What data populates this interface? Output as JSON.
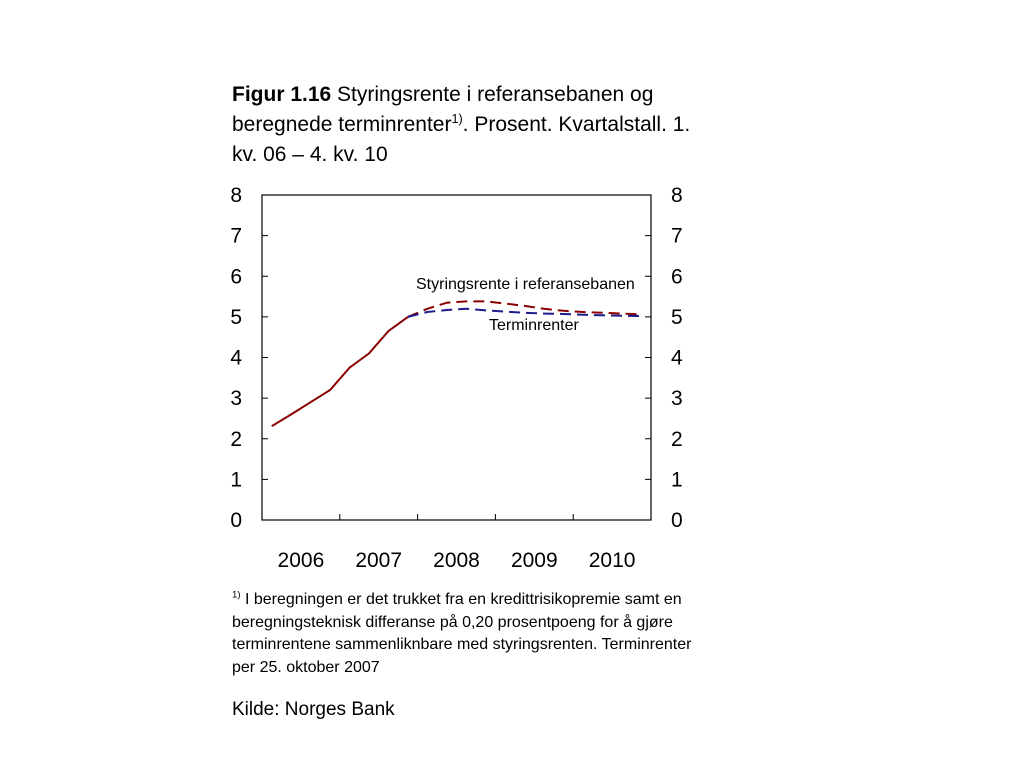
{
  "figure": {
    "label": "Figur 1.16",
    "title_part1": "Styringsrente i referansebanen og beregnede terminrenter",
    "title_sup": "1)",
    "title_part2": ". Prosent. Kvartalstall. 1. kv. 06 – 4. kv. 10"
  },
  "footnote": {
    "marker": "1)",
    "text": " I beregningen er det trukket fra en kredittrisikopremie samt en beregningsteknisk differanse på 0,20 prosentpoeng for å gjøre terminrentene sammenliknbare med styringsrenten. Terminrenter per 25. oktober 2007"
  },
  "source": "Kilde: Norges Bank",
  "chart_data": {
    "type": "line",
    "x_tick_labels": [
      "2006",
      "2007",
      "2008",
      "2009",
      "2010"
    ],
    "y_tick_labels": [
      "0",
      "1",
      "2",
      "3",
      "4",
      "5",
      "6",
      "7",
      "8"
    ],
    "ylim": [
      0,
      8
    ],
    "xlim": [
      "1. kv. 06",
      "4. kv. 10"
    ],
    "x_quarters": [
      "1. kv. 06",
      "2. kv. 06",
      "3. kv. 06",
      "4. kv. 06",
      "1. kv. 07",
      "2. kv. 07",
      "3. kv. 07",
      "4. kv. 07",
      "1. kv. 08",
      "2. kv. 08",
      "3. kv. 08",
      "4. kv. 08",
      "1. kv. 09",
      "2. kv. 09",
      "3. kv. 09",
      "4. kv. 09",
      "1. kv. 10",
      "2. kv. 10",
      "3. kv. 10",
      "4. kv. 10"
    ],
    "grid": false,
    "series": [
      {
        "name": "Styringsrente i referansebanen",
        "color": "#8b0000",
        "values": [
          2.31,
          2.6,
          2.9,
          3.2,
          3.75,
          4.1,
          4.65,
          5.0,
          5.2,
          5.35,
          5.38,
          5.38,
          5.33,
          5.27,
          5.2,
          5.15,
          5.12,
          5.1,
          5.08,
          5.06
        ],
        "solid_through_index": 7
      },
      {
        "name": "Terminrenter",
        "color": "#1c1c8c",
        "values": [
          null,
          null,
          null,
          null,
          null,
          null,
          null,
          5.0,
          5.12,
          5.17,
          5.2,
          5.16,
          5.13,
          5.1,
          5.08,
          5.07,
          5.05,
          5.04,
          5.03,
          5.02
        ],
        "solid_through_index": -1
      }
    ]
  }
}
